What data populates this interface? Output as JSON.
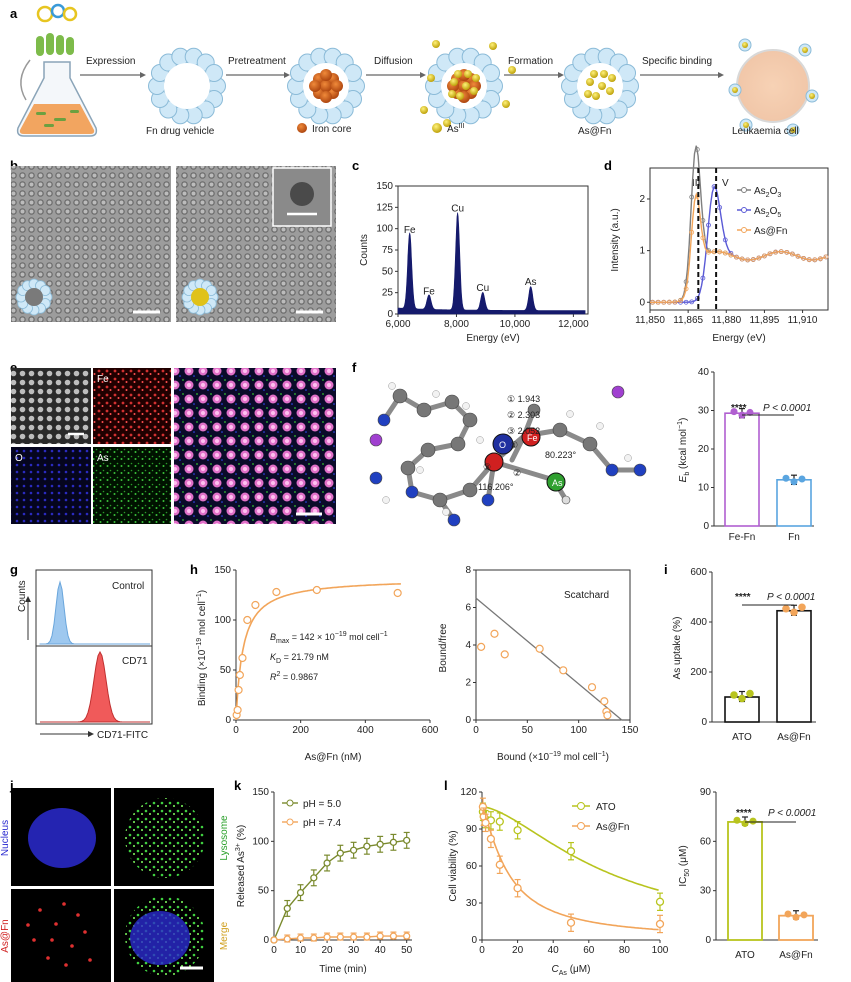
{
  "panel_labels": {
    "a": "a",
    "b": "b",
    "c": "c",
    "d": "d",
    "e": "e",
    "f": "f",
    "g": "g",
    "h": "h",
    "i": "i",
    "j": "j",
    "k": "k",
    "l": "l"
  },
  "panel_a": {
    "steps": [
      "Expression",
      "Pretreatment",
      "Diffusion",
      "Formation",
      "Specific binding"
    ],
    "labels": [
      "Fn drug vehicle",
      "Iron core",
      "As",
      "As@Fn",
      "Leukaemia cell"
    ],
    "as_superscript": "III",
    "colors": {
      "shell": "#cfe8f7",
      "iron": "#d6621e",
      "arsenic": "#e0c21a",
      "cell": "#f2c9a8"
    }
  },
  "panel_d_markers": {
    "left": "III",
    "right": "V"
  },
  "panel_e_labels": {
    "fe": "Fe",
    "o": "O",
    "as": "As"
  },
  "panel_f_molecule": {
    "d1": "① 1.943",
    "d2": "② 2.303",
    "d3": "③ 2.052",
    "angle1": "80.223°",
    "angle2": "116.206°",
    "o_atom": "O",
    "fe_atom": "Fe",
    "as_atom": "As",
    "n1": "①",
    "n2": "②",
    "n3": "③"
  },
  "panel_g": {
    "top": "Control",
    "bottom": "CD71",
    "ylabel": "Counts",
    "xlabel": "CD71-FITC"
  },
  "panel_h_stats": {
    "bmax_pre": "B",
    "bmax_sub": "max",
    "bmax_val": " = 142 × 10",
    "bmax_exp": "−19",
    "bmax_unit": " mol cell",
    "bmax_unit_exp": "−1",
    "kd_pre": "K",
    "kd_sub": "D",
    "kd_val": " = 21.79 nM",
    "r2": "R",
    "r2_exp": "2",
    "r2_val": " = 0.9867",
    "scatchard": "Scatchard"
  },
  "panel_j_labels": {
    "nucleus": "Nucleus",
    "lysosome": "Lysosome",
    "asfn": "As@Fn",
    "merge": "Merge"
  },
  "sig": {
    "f": "****",
    "f_p": "P < 0.0001",
    "i": "****",
    "i_p": "P < 0.0001",
    "l": "****",
    "l_p": "P < 0.0001"
  },
  "chart_data": [
    {
      "id": "c",
      "type": "bar",
      "xlabel": "Energy (eV)",
      "ylabel": "Counts",
      "xlim": [
        6000,
        12500
      ],
      "ylim": [
        0,
        150
      ],
      "xticks": [
        "6,000",
        "8,000",
        "10,000",
        "12,000"
      ],
      "yticks": [
        "0",
        "25",
        "50",
        "75",
        "100",
        "125",
        "150"
      ],
      "peaks": [
        {
          "label": "Fe",
          "x": 6400,
          "y": 89
        },
        {
          "label": "Fe",
          "x": 7060,
          "y": 17
        },
        {
          "label": "Cu",
          "x": 8040,
          "y": 114
        },
        {
          "label": "Cu",
          "x": 8900,
          "y": 21
        },
        {
          "label": "As",
          "x": 10540,
          "y": 28
        }
      ],
      "annotations": [
        "Fe",
        "Fe",
        "Cu",
        "Cu",
        "As"
      ]
    },
    {
      "id": "d",
      "type": "line",
      "xlabel": "Energy (eV)",
      "ylabel": "Intensity (a.u.)",
      "xlim": [
        11850,
        11920
      ],
      "ylim": [
        0,
        2.6
      ],
      "xticks": [
        "11,850",
        "11,865",
        "11,880",
        "11,895",
        "11,910"
      ],
      "yticks": [
        "0",
        "1",
        "2"
      ],
      "series": [
        {
          "name": "As2O3",
          "color": "#7f7f7f"
        },
        {
          "name": "As2O5",
          "color": "#5a5ad6"
        },
        {
          "name": "As@Fn",
          "color": "#f2a55a"
        }
      ],
      "legend": [
        "As",
        "2",
        "O",
        "3",
        "As",
        "2",
        "O",
        "5",
        "As@Fn"
      ],
      "vlines": [
        11869,
        11876
      ]
    },
    {
      "id": "f_bar",
      "type": "bar",
      "ylabel": "E",
      "ylabel_sub": "b",
      "ylabel_unit": " (kcal mol",
      "ylabel_exp": "−1",
      "ylim": [
        0,
        40
      ],
      "yticks": [
        "0",
        "10",
        "20",
        "30",
        "40"
      ],
      "categories": [
        "Fe-Fn",
        "Fn"
      ],
      "values": [
        29.3,
        12.0
      ],
      "colors": [
        "#b05fd0",
        "#5aa5e0"
      ]
    },
    {
      "id": "h_left",
      "type": "scatter",
      "xlabel": "As@Fn (nM)",
      "ylabel": "Binding (×10",
      "ylabel_exp": "−19",
      "ylabel_unit": " mol cell",
      "ylabel_unit_exp": "−1",
      "xlim": [
        0,
        600
      ],
      "ylim": [
        0,
        150
      ],
      "xticks": [
        "0",
        "200",
        "400",
        "600"
      ],
      "yticks": [
        "0",
        "50",
        "100",
        "150"
      ],
      "x": [
        2,
        5,
        8,
        12,
        20,
        35,
        60,
        125,
        250,
        500
      ],
      "y": [
        5,
        10,
        30,
        45,
        62,
        100,
        115,
        128,
        130,
        127
      ],
      "fit": {
        "bmax": 142,
        "kd": 21.79
      },
      "color": "#f2a55a"
    },
    {
      "id": "h_right",
      "type": "scatter",
      "xlabel": "Bound (×10",
      "xlabel_exp": "−19",
      "xlabel_unit": " mol cell",
      "xlabel_unit_exp": "−1",
      "ylabel": "Bound/free",
      "xlim": [
        0,
        150
      ],
      "ylim": [
        0,
        8
      ],
      "xticks": [
        "0",
        "50",
        "100",
        "150"
      ],
      "yticks": [
        "0",
        "2",
        "4",
        "6",
        "8"
      ],
      "x": [
        5,
        18,
        28,
        62,
        85,
        113,
        125,
        127,
        128
      ],
      "y": [
        3.9,
        4.6,
        3.5,
        3.8,
        2.65,
        1.75,
        1.0,
        0.45,
        0.25
      ],
      "fit_line": [
        [
          0,
          6.5
        ],
        [
          142,
          0
        ]
      ],
      "color": "#f2a55a"
    },
    {
      "id": "i",
      "type": "bar",
      "ylabel": "As uptake (%)",
      "ylim": [
        0,
        600
      ],
      "yticks": [
        "0",
        "200",
        "400",
        "600"
      ],
      "categories": [
        "ATO",
        "As@Fn"
      ],
      "values": [
        100,
        445
      ],
      "colors": [
        "#b8c41e",
        "#f2a55a"
      ]
    },
    {
      "id": "k",
      "type": "line",
      "xlabel": "Time (min)",
      "ylabel": "Released As",
      "ylabel_exp": "3+",
      "ylabel_unit": " (%)",
      "xlim": [
        0,
        52
      ],
      "ylim": [
        0,
        150
      ],
      "xticks": [
        "0",
        "10",
        "20",
        "30",
        "40",
        "50"
      ],
      "yticks": [
        "0",
        "50",
        "100",
        "150"
      ],
      "series": [
        {
          "name": "pH = 5.0",
          "color": "#7a8a2e",
          "x": [
            0,
            5,
            10,
            15,
            20,
            25,
            30,
            35,
            40,
            45,
            50
          ],
          "y": [
            0,
            32,
            48,
            63,
            78,
            88,
            91,
            95,
            97,
            99,
            101
          ]
        },
        {
          "name": "pH = 7.4",
          "color": "#f2a55a",
          "x": [
            0,
            5,
            10,
            15,
            20,
            25,
            30,
            35,
            40,
            45,
            50
          ],
          "y": [
            0,
            1,
            2,
            2,
            3,
            3,
            3,
            3,
            4,
            4,
            4
          ]
        }
      ]
    },
    {
      "id": "l_left",
      "type": "line",
      "xlabel": "C",
      "xlabel_sub": "As",
      "xlabel_unit": " (μM)",
      "ylabel": "Cell viability (%)",
      "xlim": [
        0,
        100
      ],
      "ylim": [
        0,
        120
      ],
      "xticks": [
        "0",
        "20",
        "40",
        "60",
        "80",
        "100"
      ],
      "yticks": [
        "0",
        "30",
        "60",
        "90",
        "120"
      ],
      "series": [
        {
          "name": "ATO",
          "color": "#b8c41e",
          "x": [
            0.5,
            1,
            2,
            5,
            10,
            20,
            50,
            100
          ],
          "y": [
            104,
            100,
            98,
            97,
            96,
            89,
            72,
            31
          ]
        },
        {
          "name": "As@Fn",
          "color": "#f2a55a",
          "x": [
            0.5,
            1,
            2,
            5,
            10,
            20,
            50,
            100
          ],
          "y": [
            108,
            100,
            95,
            82,
            61,
            42,
            14,
            13
          ]
        }
      ]
    },
    {
      "id": "l_right",
      "type": "bar",
      "ylabel": "IC",
      "ylabel_sub": "50",
      "ylabel_unit": " (μM)",
      "ylim": [
        0,
        90
      ],
      "yticks": [
        "0",
        "30",
        "60",
        "90"
      ],
      "categories": [
        "ATO",
        "As@Fn"
      ],
      "values": [
        71.8,
        14.8
      ],
      "colors": [
        "#b8c41e",
        "#f2a55a"
      ]
    }
  ]
}
